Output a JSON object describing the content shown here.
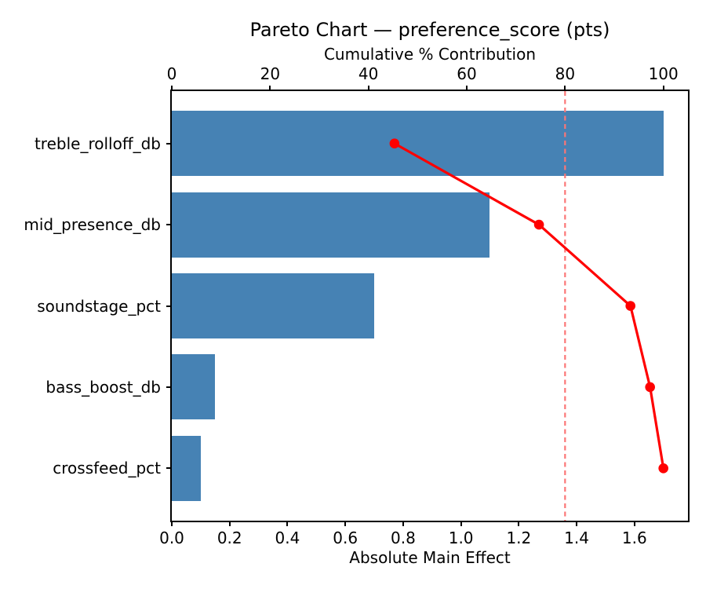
{
  "chart_data": {
    "type": "bar",
    "subtype": "pareto",
    "orientation": "horizontal",
    "title": "Pareto Chart — preference_score (pts)",
    "categories": [
      "treble_rolloff_db",
      "mid_presence_db",
      "soundstage_pct",
      "bass_boost_db",
      "crossfeed_pct"
    ],
    "series": [
      {
        "name": "Absolute Main Effect",
        "type": "bar",
        "values": [
          1.7,
          1.1,
          0.7,
          0.15,
          0.1
        ]
      },
      {
        "name": "Cumulative % Contribution",
        "type": "line",
        "values_pct": [
          45.3,
          74.7,
          93.3,
          97.3,
          100.0
        ]
      }
    ],
    "threshold_line_pct": 80,
    "axis_bottom": {
      "label": "Absolute Main Effect",
      "lim": [
        0,
        1.785
      ],
      "ticks": [
        0.0,
        0.2,
        0.4,
        0.6,
        0.8,
        1.0,
        1.2,
        1.4,
        1.6
      ],
      "tick_labels": [
        "0.0",
        "0.2",
        "0.4",
        "0.6",
        "0.8",
        "1.0",
        "1.2",
        "1.4",
        "1.6"
      ]
    },
    "axis_top": {
      "label": "Cumulative % Contribution",
      "lim": [
        0,
        105
      ],
      "ticks": [
        0,
        20,
        40,
        60,
        80,
        100
      ],
      "tick_labels": [
        "0",
        "20",
        "40",
        "60",
        "80",
        "100"
      ]
    },
    "grid": false,
    "legend": null,
    "colors": {
      "bar": "#4682B4",
      "line": "#FF0000",
      "marker": "#FF0000",
      "threshold": "#FB7676",
      "text": "#000000",
      "spine": "#000000",
      "background": "#FFFFFF"
    }
  }
}
